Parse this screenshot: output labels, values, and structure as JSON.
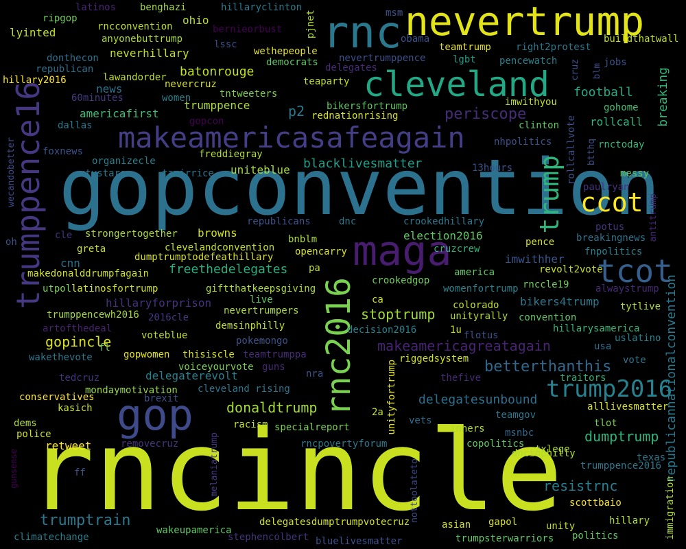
{
  "colors": {
    "background": "#000000",
    "palette": [
      "#440154",
      "#472a7a",
      "#3b528b",
      "#2c728e",
      "#21918c",
      "#28ae80",
      "#5ec962",
      "#addc30",
      "#fde725"
    ]
  },
  "words": [
    {
      "text": "rncincle",
      "color": "#c8e020"
    },
    {
      "text": "gopconvention",
      "color": "#2c728e"
    },
    {
      "text": "nevertrump",
      "color": "#e2e418"
    },
    {
      "text": "rnc",
      "color": "#2a788e"
    },
    {
      "text": "cleveland",
      "color": "#22a884"
    },
    {
      "text": "makeamericasafeagain",
      "color": "#433e85"
    },
    {
      "text": "maga",
      "color": "#481d6f"
    },
    {
      "text": "gop",
      "color": "#3e4a89"
    },
    {
      "text": "trumppence16",
      "color": "#453781"
    },
    {
      "text": "rnc2016",
      "color": "#7ad151"
    },
    {
      "text": "trump",
      "color": "#2fb47c"
    },
    {
      "text": "ccot",
      "color": "#fde725"
    },
    {
      "text": "tcot",
      "color": "#355f8d"
    },
    {
      "text": "trump2016",
      "color": "#26828e"
    },
    {
      "text": "periscope",
      "color": "#472c7a"
    },
    {
      "text": "republicannationalconvention",
      "color": "#2a788e"
    },
    {
      "text": "blacklivesmatter",
      "color": "#1f9e89"
    },
    {
      "text": "makeamericagreatagain",
      "color": "#482374"
    },
    {
      "text": "stoptrump",
      "color": "#a0da39"
    },
    {
      "text": "betterthanthis",
      "color": "#31688e"
    },
    {
      "text": "donaldtrump",
      "color": "#a5db36"
    },
    {
      "text": "dumptrump",
      "color": "#2fb47c"
    },
    {
      "text": "resistrnc",
      "color": "#287d8e"
    },
    {
      "text": "trumptrain",
      "color": "#2a788e"
    },
    {
      "text": "gopincle",
      "color": "#d8e219"
    },
    {
      "text": "freethedelegates",
      "color": "#28ae80"
    },
    {
      "text": "delegatesunbound",
      "color": "#2d708e"
    },
    {
      "text": "breaking",
      "color": "#35b779"
    },
    {
      "text": "football",
      "color": "#22a884"
    },
    {
      "text": "batonrouge",
      "color": "#c2df23"
    },
    {
      "text": "neverhillary",
      "color": "#c2df23"
    },
    {
      "text": "americafirst",
      "color": "#3dbc74"
    },
    {
      "text": "trumppence",
      "color": "#addc30"
    },
    {
      "text": "imwithher",
      "color": "#39568c"
    },
    {
      "text": "election2016",
      "color": "#5ec962"
    },
    {
      "text": "bikers4trump",
      "color": "#2a788e"
    },
    {
      "text": "delegaterevolt",
      "color": "#26828e"
    },
    {
      "text": "uniteblue",
      "color": "#a5db36"
    },
    {
      "text": "retweet",
      "color": "#fde725"
    },
    {
      "text": "browns",
      "color": "#d2e21b"
    },
    {
      "text": "p2",
      "color": "#2a788e"
    },
    {
      "text": "rollcall",
      "color": "#2fb47c"
    },
    {
      "text": "hillaryforprison",
      "color": "#46327e"
    },
    {
      "text": "lyinted",
      "color": "#c2df23"
    },
    {
      "text": "ohio",
      "color": "#bddf26"
    },
    {
      "text": "news",
      "color": "#2c728e"
    },
    {
      "text": "teamtrump",
      "color": "#e5e419"
    },
    {
      "text": "right2protest",
      "color": "#2a788e"
    },
    {
      "text": "rnctoday",
      "color": "#35b779"
    },
    {
      "text": "clinton",
      "color": "#5ec962"
    },
    {
      "text": "gohome",
      "color": "#44bf70"
    },
    {
      "text": "rollcallvote",
      "color": "#3b528b"
    },
    {
      "text": "cnn",
      "color": "#2d708e"
    },
    {
      "text": "dallas",
      "color": "#2a788e"
    },
    {
      "text": "tntweeters",
      "color": "#7ad151"
    },
    {
      "text": "lgbt",
      "color": "#1f9e89"
    },
    {
      "text": "dnc",
      "color": "#2a788e"
    },
    {
      "text": "alllivesmatter",
      "color": "#d8e219"
    },
    {
      "text": "delegatesdumptrumpvotecruz",
      "color": "#d2e21b"
    },
    {
      "text": "wakeupamerica",
      "color": "#5ec962"
    },
    {
      "text": "scottbaio",
      "color": "#fde725"
    },
    {
      "text": "hillary",
      "color": "#addc30"
    },
    {
      "text": "politics",
      "color": "#5ec962"
    },
    {
      "text": "climatechange",
      "color": "#26828e"
    },
    {
      "text": "msnbc",
      "color": "#31688e"
    },
    {
      "text": "txlege",
      "color": "#b5de2b"
    },
    {
      "text": "tlot",
      "color": "#7ad151"
    },
    {
      "text": "pence",
      "color": "#d2e21b"
    },
    {
      "text": "fnpolitics",
      "color": "#26828e"
    },
    {
      "text": "breakingnews",
      "color": "#2c728e"
    },
    {
      "text": "revolt2vote",
      "color": "#c8e020"
    },
    {
      "text": "rnccle19",
      "color": "#6ece58"
    },
    {
      "text": "alwaystrump",
      "color": "#482878"
    },
    {
      "text": "tytlive",
      "color": "#addc30"
    },
    {
      "text": "convention",
      "color": "#5ec962"
    },
    {
      "text": "hillarysamerica",
      "color": "#35b779"
    },
    {
      "text": "uslatino",
      "color": "#26828e"
    },
    {
      "text": "vote",
      "color": "#2a788e"
    },
    {
      "text": "usa",
      "color": "#2d708e"
    },
    {
      "text": "gopwomen",
      "color": "#e5e419"
    },
    {
      "text": "thisiscle",
      "color": "#d8e219"
    },
    {
      "text": "voiceyourvote",
      "color": "#7ad151"
    },
    {
      "text": "teamtrumppa",
      "color": "#472d7b"
    },
    {
      "text": "riggedsystem",
      "color": "#d2e21b"
    },
    {
      "text": "cleveland rising",
      "color": "#2a788e"
    },
    {
      "text": "mondaymotivation",
      "color": "#95d840"
    },
    {
      "text": "conservatives",
      "color": "#fde725"
    },
    {
      "text": "kasich",
      "color": "#c8e020"
    },
    {
      "text": "dems",
      "color": "#b5de2b"
    },
    {
      "text": "police",
      "color": "#d2e21b"
    },
    {
      "text": "removecruz",
      "color": "#46337e"
    },
    {
      "text": "ff",
      "color": "#3b528b"
    },
    {
      "text": "gunsense",
      "color": "#440154"
    },
    {
      "text": "melaniatrump",
      "color": "#443a83"
    },
    {
      "text": "nottoolateto",
      "color": "#3e4a89"
    },
    {
      "text": "unityfortrump",
      "color": "#e2e418"
    },
    {
      "text": "rncpovertyforum",
      "color": "#2a788e"
    },
    {
      "text": "specialreport",
      "color": "#7ad151"
    },
    {
      "text": "racism",
      "color": "#c2df23"
    },
    {
      "text": "2a",
      "color": "#c8e020"
    },
    {
      "text": "vets",
      "color": "#2c728e"
    },
    {
      "text": "inners",
      "color": "#addc30"
    },
    {
      "text": "copolitics",
      "color": "#5ec962"
    },
    {
      "text": "dncinphilly",
      "color": "#addc30"
    },
    {
      "text": "teamgov",
      "color": "#2a788e"
    },
    {
      "text": "texas",
      "color": "#2a788e"
    },
    {
      "text": "trumppence2016",
      "color": "#2a788e"
    },
    {
      "text": "immigration",
      "color": "#addc30"
    },
    {
      "text": "gapol",
      "color": "#d8e219"
    },
    {
      "text": "asian",
      "color": "#d2e21b"
    },
    {
      "text": "unity",
      "color": "#c2df23"
    },
    {
      "text": "trumpsterwarriors",
      "color": "#5ec962"
    },
    {
      "text": "bluelivesmatter",
      "color": "#3b528b"
    },
    {
      "text": "stephencolbert",
      "color": "#46337e"
    },
    {
      "text": "latinos",
      "color": "#482475"
    },
    {
      "text": "benghazi",
      "color": "#a5db36"
    },
    {
      "text": "hillaryclinton",
      "color": "#287d8e"
    },
    {
      "text": "ripgop",
      "color": "#6ece58"
    },
    {
      "text": "rncconvention",
      "color": "#c2df23"
    },
    {
      "text": "anyonebuttrump",
      "color": "#addc30"
    },
    {
      "text": "donthecon",
      "color": "#2c728e"
    },
    {
      "text": "republican",
      "color": "#2c728e"
    },
    {
      "text": "lawandorder",
      "color": "#c2df23"
    },
    {
      "text": "hillary2016",
      "color": "#fde725"
    },
    {
      "text": "60minutes",
      "color": "#443983"
    },
    {
      "text": "women",
      "color": "#26828e"
    },
    {
      "text": "nevercruz",
      "color": "#d8e219"
    },
    {
      "text": "gopcon",
      "color": "#440154"
    },
    {
      "text": "foxnews",
      "color": "#3b528b"
    },
    {
      "text": "organizecle",
      "color": "#26828e"
    },
    {
      "text": "mtvstars",
      "color": "#2a788e"
    },
    {
      "text": "tamirrice",
      "color": "#2a788e"
    },
    {
      "text": "freddiegray",
      "color": "#b5de2b"
    },
    {
      "text": "wecandobetter",
      "color": "#3e4a89"
    },
    {
      "text": "oh",
      "color": "#3b528b"
    },
    {
      "text": "cle",
      "color": "#46337e"
    },
    {
      "text": "greta",
      "color": "#c8e020"
    },
    {
      "text": "strongertogether",
      "color": "#addc30"
    },
    {
      "text": "republicans",
      "color": "#3b528b"
    },
    {
      "text": "makedonalddrumpfagain",
      "color": "#d2e21b"
    },
    {
      "text": "utpol",
      "color": "#7ad151"
    },
    {
      "text": "latinosfortrump",
      "color": "#d2e21b"
    },
    {
      "text": "trumppencewh2016",
      "color": "#a5db36"
    },
    {
      "text": "2016cle",
      "color": "#443983"
    },
    {
      "text": "artofthedeal",
      "color": "#482173"
    },
    {
      "text": "fl",
      "color": "#6ece58"
    },
    {
      "text": "wakethevote",
      "color": "#2a788e"
    },
    {
      "text": "tedcruz",
      "color": "#46337e"
    },
    {
      "text": "brexit",
      "color": "#3b528b"
    },
    {
      "text": "clevelandconvention",
      "color": "#c8e020"
    },
    {
      "text": "dumptrumptodefeathillary",
      "color": "#d8e219"
    },
    {
      "text": "giftthatkeepsgiving",
      "color": "#addc30"
    },
    {
      "text": "live",
      "color": "#5ec962"
    },
    {
      "text": "nevertrumpers",
      "color": "#addc30"
    },
    {
      "text": "demsinphilly",
      "color": "#c2df23"
    },
    {
      "text": "pokemongo",
      "color": "#3b528b"
    },
    {
      "text": "voteblue",
      "color": "#c2df23"
    },
    {
      "text": "guns",
      "color": "#482878"
    },
    {
      "text": "nra",
      "color": "#3b528b"
    },
    {
      "text": "ca",
      "color": "#d2e21b"
    },
    {
      "text": "decision2016",
      "color": "#26828e"
    },
    {
      "text": "crookedgop",
      "color": "#6ece58"
    },
    {
      "text": "pa",
      "color": "#bddf26"
    },
    {
      "text": "bnblm",
      "color": "#addc30"
    },
    {
      "text": "opencarry",
      "color": "#d8e219"
    },
    {
      "text": "crookedhillary",
      "color": "#2a788e"
    },
    {
      "text": "cruzcrew",
      "color": "#2fb47c"
    },
    {
      "text": "america",
      "color": "#5ec962"
    },
    {
      "text": "womenfortrump",
      "color": "#26828e"
    },
    {
      "text": "colorado",
      "color": "#c2df23"
    },
    {
      "text": "unityrally",
      "color": "#addc30"
    },
    {
      "text": "flotus",
      "color": "#3b528b"
    },
    {
      "text": "1u",
      "color": "#c8e020"
    },
    {
      "text": "thefive",
      "color": "#482878"
    },
    {
      "text": "traitors",
      "color": "#2fb47c"
    },
    {
      "text": "potus",
      "color": "#46327e"
    },
    {
      "text": "antitrump",
      "color": "#482878"
    },
    {
      "text": "paulryan",
      "color": "#46327e"
    },
    {
      "text": "messy",
      "color": "#5ec962"
    },
    {
      "text": "13hours",
      "color": "#3b528b"
    },
    {
      "text": "btthq",
      "color": "#3b528b"
    },
    {
      "text": "nhpolitics",
      "color": "#3b528b"
    },
    {
      "text": "imwithyou",
      "color": "#c2df23"
    },
    {
      "text": "bikersfortrump",
      "color": "#5ec962"
    },
    {
      "text": "rednationrising",
      "color": "#d8e219"
    },
    {
      "text": "teaparty",
      "color": "#c2df23"
    },
    {
      "text": "democrats",
      "color": "#5ec962"
    },
    {
      "text": "delegates",
      "color": "#482878"
    },
    {
      "text": "wethepeople",
      "color": "#e5e419"
    },
    {
      "text": "berniеorbust",
      "color": "#440154"
    },
    {
      "text": "obama",
      "color": "#3b528b"
    },
    {
      "text": "nevertrumppence",
      "color": "#3b528b"
    },
    {
      "text": "pencewatch",
      "color": "#26828e"
    },
    {
      "text": "jobs",
      "color": "#3b528b"
    },
    {
      "text": "blm",
      "color": "#3e4a89"
    },
    {
      "text": "cruz",
      "color": "#3b528b"
    },
    {
      "text": "buildthatwall",
      "color": "#c2df23"
    },
    {
      "text": "msm",
      "color": "#3b528b"
    },
    {
      "text": "pjnet",
      "color": "#addc30"
    },
    {
      "text": "lssc",
      "color": "#3b528b"
    }
  ]
}
